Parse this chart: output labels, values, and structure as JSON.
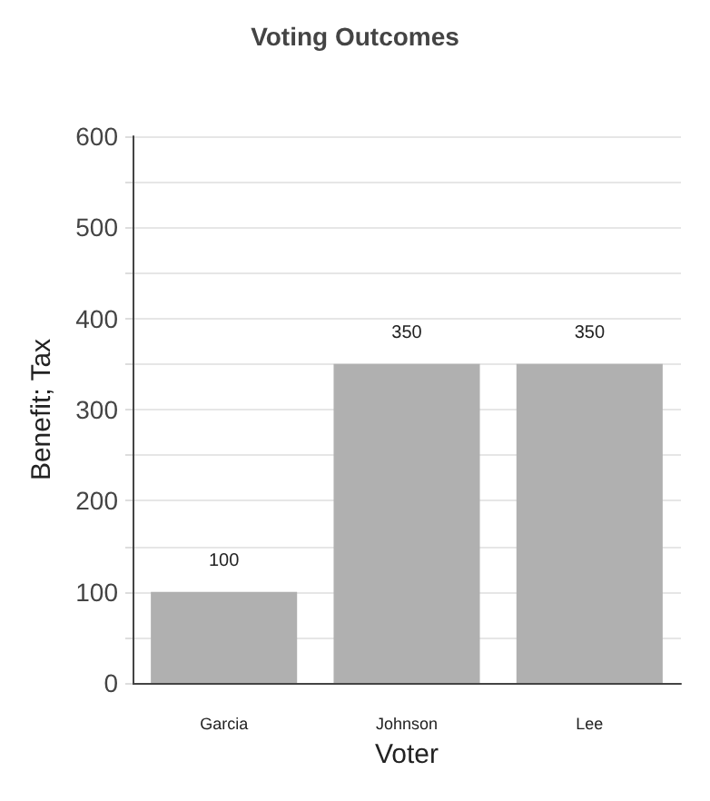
{
  "chart_data": {
    "type": "bar",
    "title": "Voting Outcomes",
    "xlabel": "Voter",
    "ylabel": "Benefit; Tax",
    "categories": [
      "Garcia",
      "Johnson",
      "Lee"
    ],
    "values": [
      100,
      350,
      350
    ],
    "color": "#b0b0b0",
    "ylim": [
      0,
      600
    ],
    "yticks": [
      0,
      {
        "value": 50,
        "label": null
      },
      100,
      {
        "value": 150,
        "label": null
      },
      200,
      {
        "value": 250,
        "label": null
      },
      300,
      {
        "value": 350,
        "label": null
      },
      400,
      {
        "value": 450,
        "label": null
      },
      500,
      {
        "value": 550,
        "label": null
      },
      600
    ],
    "grid": true,
    "data_labels": true
  }
}
